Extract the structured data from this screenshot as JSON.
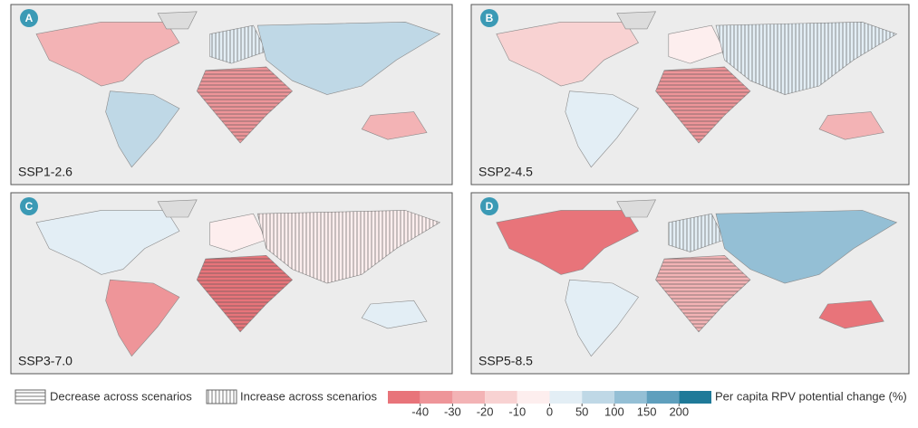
{
  "panels": [
    {
      "letter": "A",
      "scenario": "SSP1-2.6"
    },
    {
      "letter": "B",
      "scenario": "SSP2-4.5"
    },
    {
      "letter": "C",
      "scenario": "SSP3-7.0"
    },
    {
      "letter": "D",
      "scenario": "SSP5-8.5"
    }
  ],
  "legend": {
    "decrease": "Decrease across scenarios",
    "increase": "Increase across scenarios",
    "colorbar_label": "Per capita RPV potential change (%)",
    "colors": [
      "#e8747a",
      "#ee9599",
      "#f3b3b5",
      "#f8d2d2",
      "#fdeeee",
      "#e3eef5",
      "#bfd8e6",
      "#94bfd5",
      "#5f9fbd",
      "#1f7a99"
    ],
    "ticks": [
      -40,
      -30,
      -20,
      -10,
      0,
      50,
      100,
      150,
      200
    ]
  }
}
